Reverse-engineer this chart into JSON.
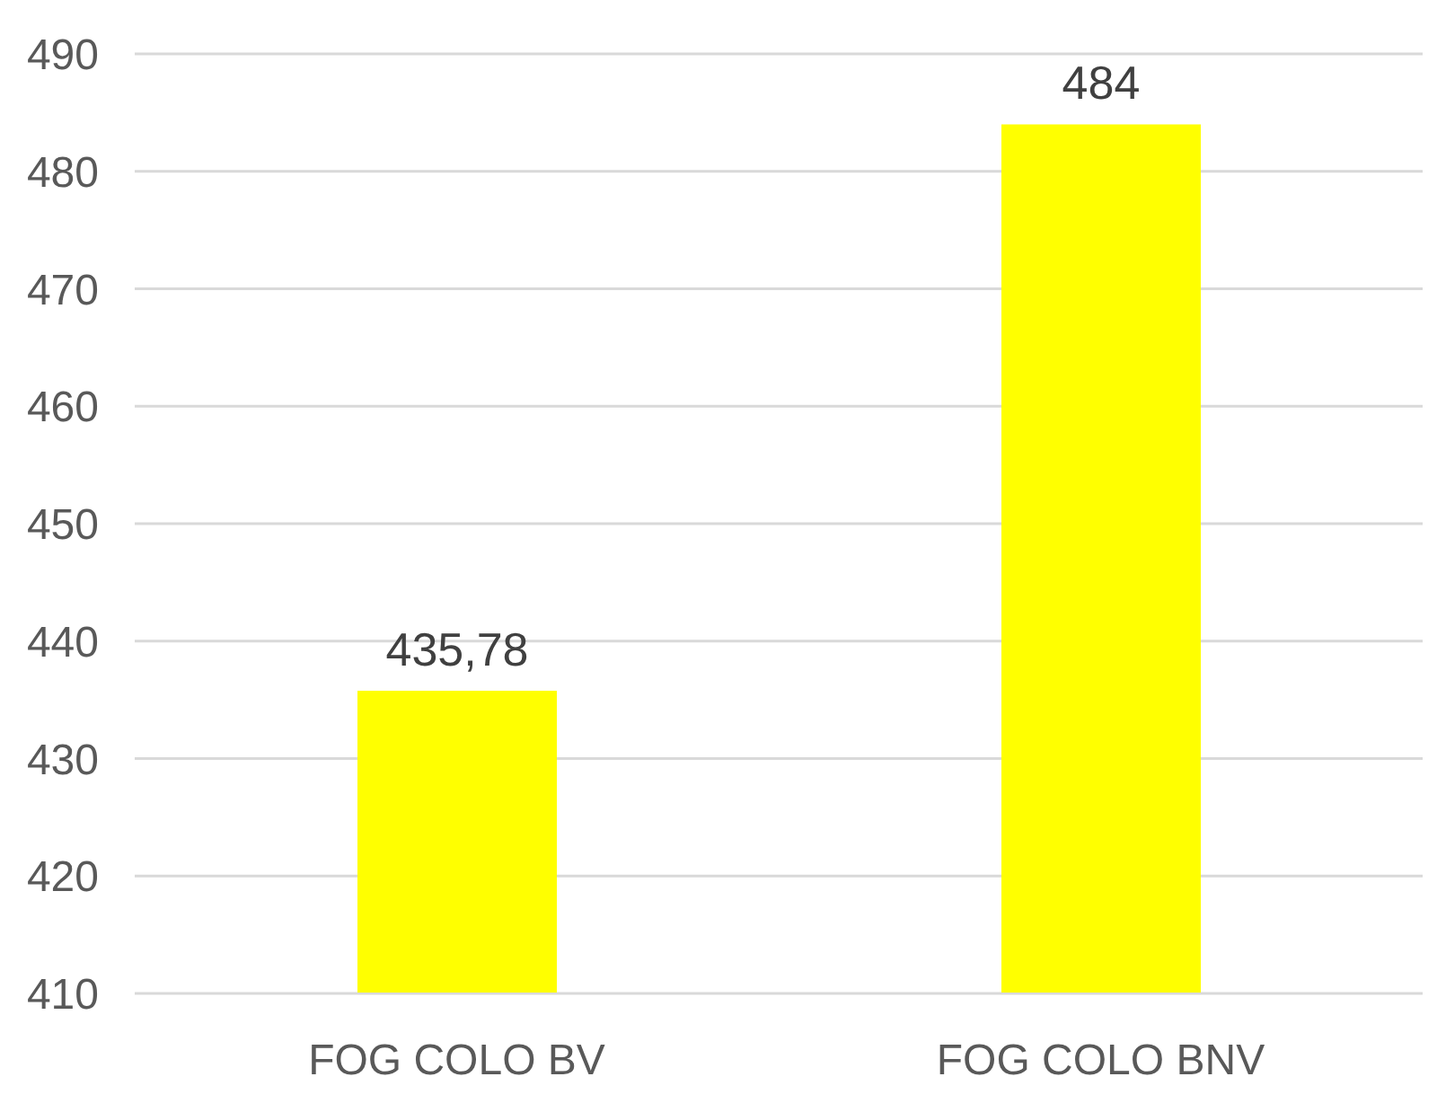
{
  "chart_data": {
    "type": "bar",
    "categories": [
      "FOG COLO BV",
      "FOG COLO BNV"
    ],
    "values": [
      435.78,
      484
    ],
    "value_labels": [
      "435,78",
      "484"
    ],
    "color": "#ffff00",
    "ylim": [
      410,
      490
    ],
    "yticks": [
      410,
      420,
      430,
      440,
      450,
      460,
      470,
      480,
      490
    ],
    "grid": "y"
  }
}
